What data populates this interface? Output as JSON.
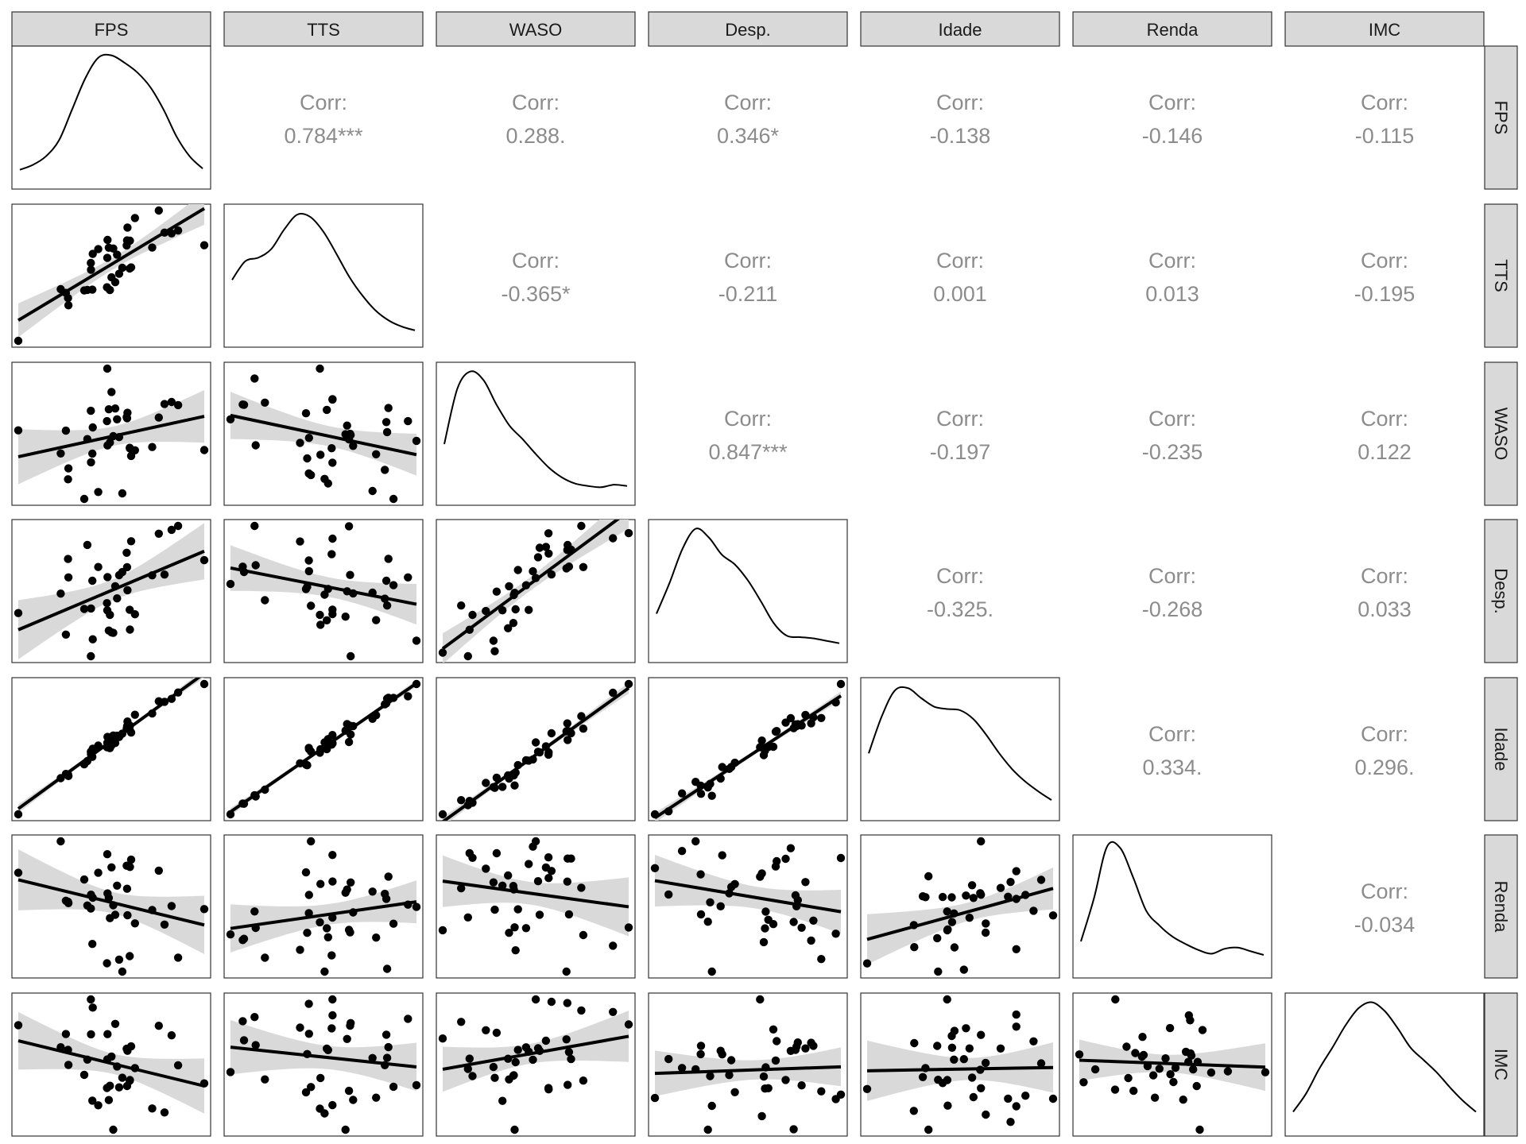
{
  "chart_data": {
    "type": "scatter-matrix",
    "variables": [
      "FPS",
      "TTS",
      "WASO",
      "Desp.",
      "Idade",
      "Renda",
      "IMC"
    ],
    "correlation_label": "Corr:",
    "correlations": [
      {
        "row": "FPS",
        "col": "TTS",
        "value": "0.784***"
      },
      {
        "row": "FPS",
        "col": "WASO",
        "value": "0.288."
      },
      {
        "row": "FPS",
        "col": "Desp.",
        "value": "0.346*"
      },
      {
        "row": "FPS",
        "col": "Idade",
        "value": "-0.138"
      },
      {
        "row": "FPS",
        "col": "Renda",
        "value": "-0.146"
      },
      {
        "row": "FPS",
        "col": "IMC",
        "value": "-0.115"
      },
      {
        "row": "TTS",
        "col": "WASO",
        "value": "-0.365*"
      },
      {
        "row": "TTS",
        "col": "Desp.",
        "value": "-0.211"
      },
      {
        "row": "TTS",
        "col": "Idade",
        "value": "0.001"
      },
      {
        "row": "TTS",
        "col": "Renda",
        "value": "0.013"
      },
      {
        "row": "TTS",
        "col": "IMC",
        "value": "-0.195"
      },
      {
        "row": "WASO",
        "col": "Desp.",
        "value": "0.847***"
      },
      {
        "row": "WASO",
        "col": "Idade",
        "value": "-0.197"
      },
      {
        "row": "WASO",
        "col": "Renda",
        "value": "-0.235"
      },
      {
        "row": "WASO",
        "col": "IMC",
        "value": "0.122"
      },
      {
        "row": "Desp.",
        "col": "Idade",
        "value": "-0.325."
      },
      {
        "row": "Desp.",
        "col": "Renda",
        "value": "-0.268"
      },
      {
        "row": "Desp.",
        "col": "IMC",
        "value": "0.033"
      },
      {
        "row": "Idade",
        "col": "Renda",
        "value": "0.334."
      },
      {
        "row": "Idade",
        "col": "IMC",
        "value": "0.296."
      },
      {
        "row": "Renda",
        "col": "IMC",
        "value": "-0.034"
      }
    ],
    "point_color": "#000000",
    "line_color": "#000000",
    "ribbon_color": "#d9d9d9",
    "strip_color": "#d9d9d9",
    "grid": false
  }
}
